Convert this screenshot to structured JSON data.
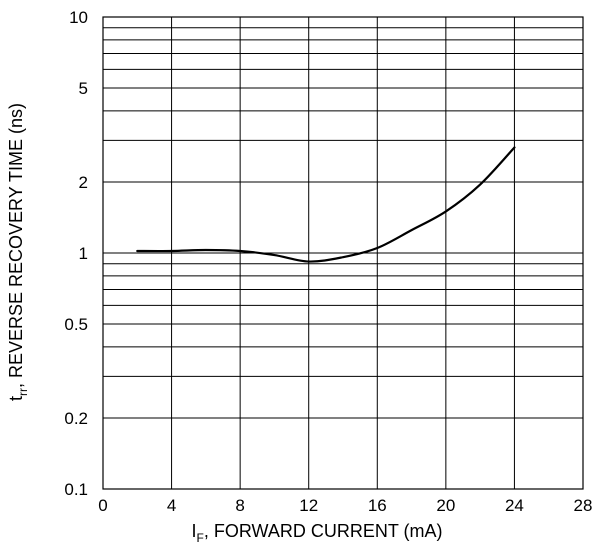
{
  "chart_data": {
    "type": "line",
    "xlabel": {
      "main": "I",
      "sub": "F",
      "rest": ", FORWARD CURRENT (mA)"
    },
    "ylabel": {
      "main": "t",
      "sub": "rr",
      "rest": ", REVERSE RECOVERY TIME (ns)"
    },
    "x_scale": "linear",
    "y_scale": "log",
    "xlim": [
      0,
      28
    ],
    "ylim": [
      0.1,
      10
    ],
    "x_ticks": [
      0,
      4,
      8,
      12,
      16,
      20,
      24,
      28
    ],
    "x_tick_labels": [
      "0",
      "4",
      "8",
      "12",
      "16",
      "20",
      "24",
      "28"
    ],
    "y_ticks": [
      0.1,
      0.2,
      0.5,
      1,
      2,
      5,
      10
    ],
    "y_tick_labels": [
      "0.1",
      "0.2",
      "0.5",
      "1",
      "2",
      "5",
      "10"
    ],
    "grid": true,
    "series": [
      {
        "color": "#000000",
        "x": [
          2,
          4,
          6,
          8,
          10,
          12,
          14,
          16,
          18,
          20,
          22,
          24
        ],
        "y": [
          1.02,
          1.02,
          1.03,
          1.02,
          0.98,
          0.92,
          0.96,
          1.05,
          1.25,
          1.5,
          1.95,
          2.8
        ]
      }
    ]
  }
}
